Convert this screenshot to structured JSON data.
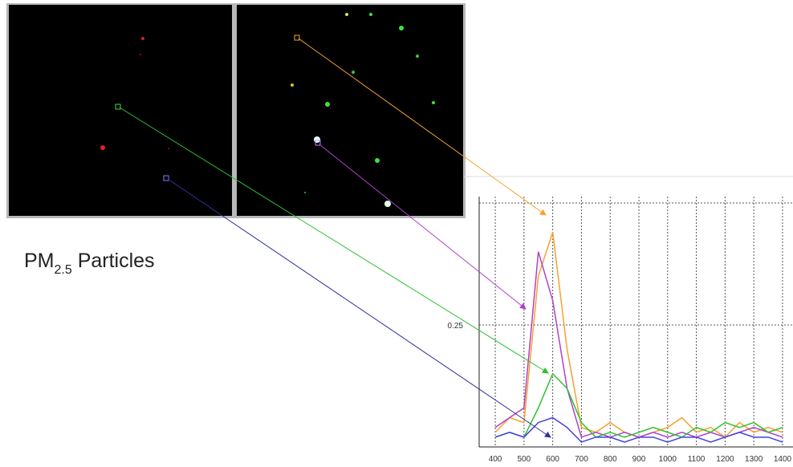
{
  "caption": {
    "main": "PM",
    "subscript": "2.5",
    "rest": " Particles"
  },
  "chart_data": {
    "type": "line",
    "x": [
      400,
      450,
      500,
      550,
      600,
      650,
      700,
      750,
      800,
      850,
      900,
      950,
      1000,
      1050,
      1100,
      1150,
      1200,
      1250,
      1300,
      1350,
      1400
    ],
    "series": [
      {
        "color": "#f7a030",
        "values": [
          0.03,
          0.06,
          0.05,
          0.35,
          0.44,
          0.2,
          0.04,
          0.03,
          0.05,
          0.03,
          0.02,
          0.03,
          0.04,
          0.06,
          0.03,
          0.04,
          0.02,
          0.05,
          0.03,
          0.04,
          0.03
        ]
      },
      {
        "color": "#b040c8",
        "values": [
          0.04,
          0.06,
          0.08,
          0.4,
          0.3,
          0.12,
          0.02,
          0.03,
          0.02,
          0.03,
          0.02,
          0.03,
          0.02,
          0.03,
          0.02,
          0.03,
          0.02,
          0.03,
          0.04,
          0.03,
          0.02
        ]
      },
      {
        "color": "#30c030",
        "values": [
          0.02,
          0.03,
          0.02,
          0.08,
          0.15,
          0.12,
          0.05,
          0.02,
          0.03,
          0.02,
          0.03,
          0.04,
          0.03,
          0.02,
          0.04,
          0.03,
          0.05,
          0.04,
          0.05,
          0.03,
          0.04
        ]
      },
      {
        "color": "#4040e0",
        "values": [
          0.02,
          0.03,
          0.02,
          0.05,
          0.06,
          0.04,
          0.01,
          0.02,
          0.02,
          0.01,
          0.02,
          0.02,
          0.01,
          0.02,
          0.02,
          0.01,
          0.02,
          0.03,
          0.02,
          0.02,
          0.01
        ]
      }
    ],
    "xlim": [
      344,
      1428
    ],
    "xticks": [
      400,
      500,
      600,
      700,
      800,
      900,
      1000,
      1100,
      1200,
      1300,
      1400
    ],
    "ylim": [
      0,
      0.513
    ],
    "yticks": [
      0.25
    ],
    "grid": true
  }
}
